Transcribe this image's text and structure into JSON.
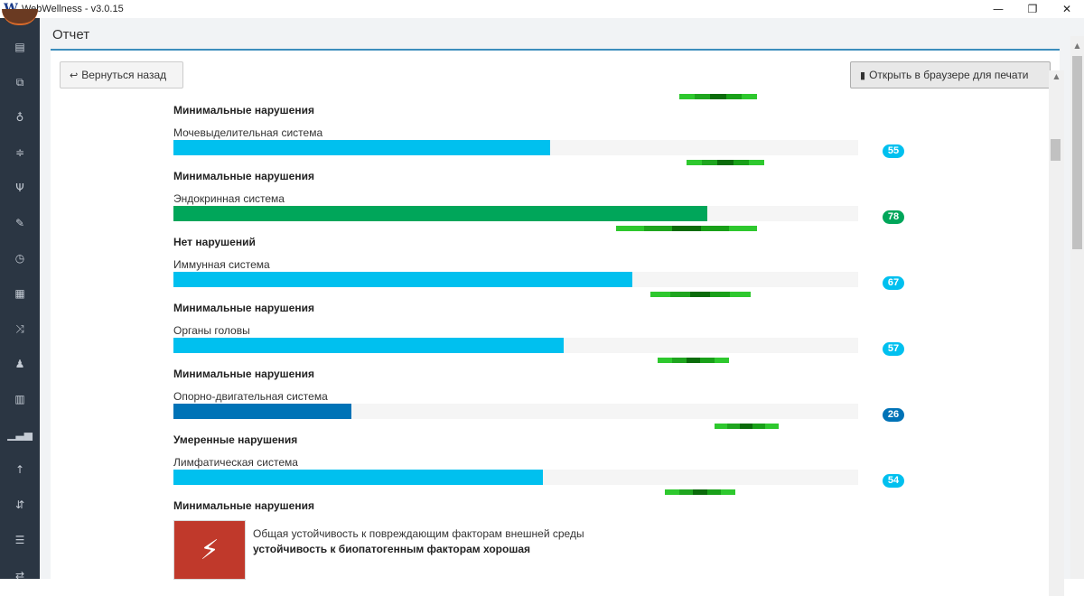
{
  "window": {
    "title": "WebWellness - v3.0.15",
    "logo": "W",
    "controls": [
      "—",
      "❐",
      "✕"
    ]
  },
  "page": {
    "title": "Отчет"
  },
  "toolbar": {
    "back_label": "Вернуться назад",
    "print_label": "Открыть в браузере для печати"
  },
  "sidebar": {
    "icons": [
      "id-card-icon",
      "clone-icon",
      "stethoscope-icon",
      "sliders-icon",
      "cutlery-icon",
      "pencil-icon",
      "clock-icon",
      "calculator-icon",
      "random-icon",
      "child-icon",
      "bar-chart-icon",
      "signal-icon",
      "arrow-up-icon",
      "sort-icon",
      "list-icon",
      "exchange-icon"
    ]
  },
  "report": {
    "top_status": "Минимальные нарушения",
    "items": [
      {
        "name": "Мочевыделительная система",
        "value": 55,
        "color": "#00c0ef",
        "status": "Минимальные нарушения"
      },
      {
        "name": "Эндокринная система",
        "value": 78,
        "color": "#00a65a",
        "status": "Нет нарушений"
      },
      {
        "name": "Иммунная система",
        "value": 67,
        "color": "#00c0ef",
        "status": "Минимальные нарушения"
      },
      {
        "name": "Органы головы",
        "value": 57,
        "color": "#00c0ef",
        "status": "Минимальные нарушения"
      },
      {
        "name": "Опорно-двигательная система",
        "value": 26,
        "color": "#0073b7",
        "status": "Умеренные нарушения"
      },
      {
        "name": "Лимфатическая система",
        "value": 54,
        "color": "#00c0ef",
        "status": "Минимальные нарушения"
      }
    ],
    "resistance": {
      "title": "Общая устойчивость к повреждающим факторам внешней среды",
      "result": "устойчивость к биопатогенным факторам хорошая",
      "icon": "lightning-icon"
    }
  }
}
